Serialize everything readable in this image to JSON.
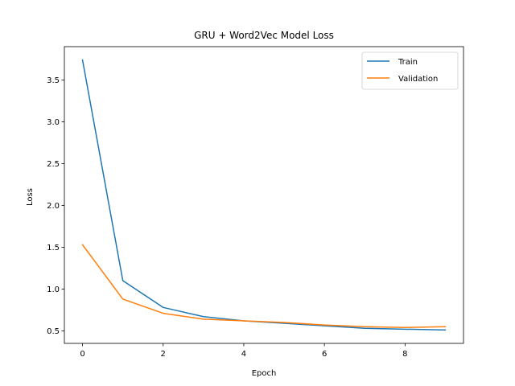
{
  "chart_data": {
    "type": "line",
    "title": "GRU + Word2Vec Model Loss",
    "xlabel": "Epoch",
    "ylabel": "Loss",
    "x": [
      0,
      1,
      2,
      3,
      4,
      5,
      6,
      7,
      8,
      9
    ],
    "series": [
      {
        "name": "Train",
        "color": "#1f77b4",
        "values": [
          3.74,
          1.1,
          0.78,
          0.67,
          0.62,
          0.59,
          0.56,
          0.53,
          0.52,
          0.51
        ]
      },
      {
        "name": "Validation",
        "color": "#ff7f0e",
        "values": [
          1.53,
          0.88,
          0.71,
          0.64,
          0.62,
          0.6,
          0.57,
          0.55,
          0.54,
          0.55
        ]
      }
    ],
    "xlim": [
      -0.45,
      9.45
    ],
    "ylim": [
      0.35,
      3.9
    ],
    "xticks": [
      0,
      2,
      4,
      6,
      8
    ],
    "yticks": [
      0.5,
      1.0,
      1.5,
      2.0,
      2.5,
      3.0,
      3.5
    ],
    "ytick_labels": [
      "0.5",
      "1.0",
      "1.5",
      "2.0",
      "2.5",
      "3.0",
      "3.5"
    ],
    "grid": false,
    "legend_position": "upper-right"
  }
}
